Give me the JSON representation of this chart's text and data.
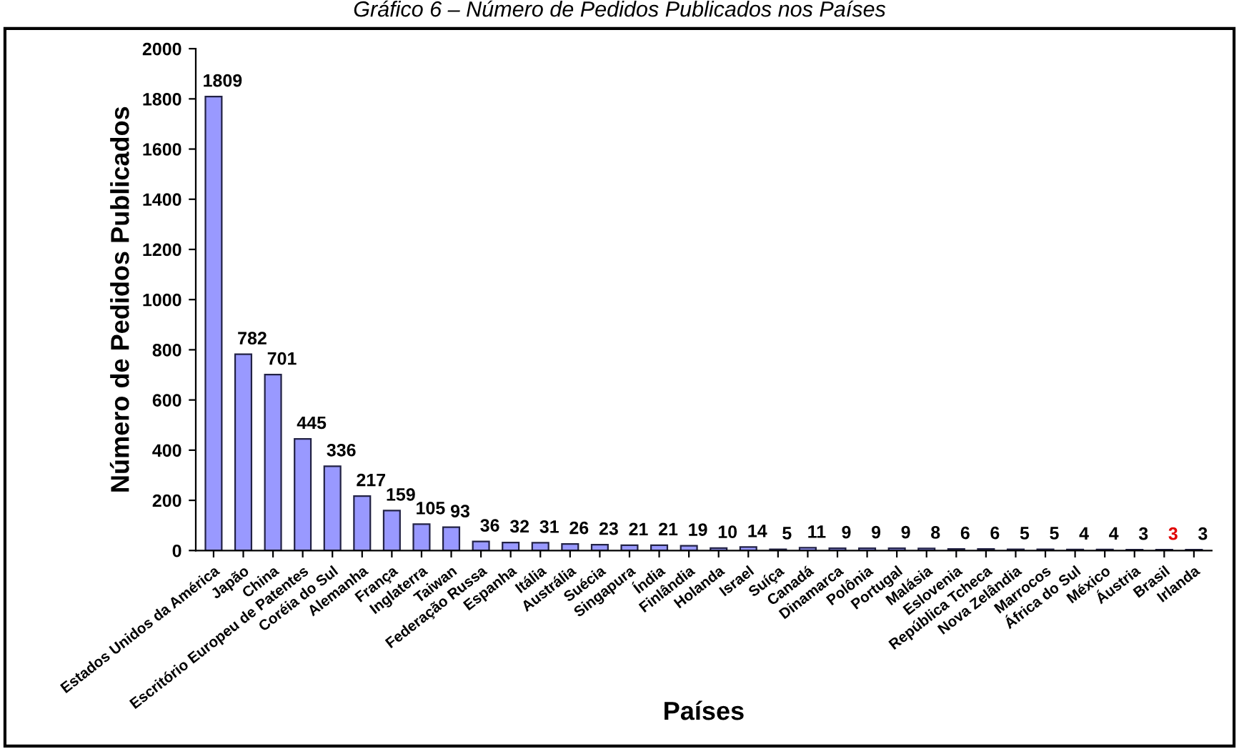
{
  "chart_data": {
    "type": "bar",
    "title": "Gráfico 6 – Número de Pedidos Publicados nos Países",
    "xlabel": "Países",
    "ylabel": "Número de Pedidos Publicados",
    "categories": [
      "Estados Unidos da América",
      "Japão",
      "China",
      "Escritório Europeu de Patentes",
      "Coréia do Sul",
      "Alemanha",
      "França",
      "Inglaterra",
      "Taiwan",
      "Federação Russa",
      "Espanha",
      "Itália",
      "Austrália",
      "Suécia",
      "Singapura",
      "Índia",
      "Finlândia",
      "Holanda",
      "Israel",
      "Suíça",
      "Canadá",
      "Dinamarca",
      "Polônia",
      "Portugal",
      "Malásia",
      "Eslovenia",
      "República Tcheca",
      "Nova Zelândia",
      "Marrocos",
      "África do Sul",
      "México",
      "Áustria",
      "Brasil",
      "Irlanda"
    ],
    "values": [
      1809,
      782,
      701,
      445,
      336,
      217,
      159,
      105,
      93,
      36,
      32,
      31,
      26,
      23,
      21,
      21,
      19,
      10,
      14,
      5,
      11,
      9,
      9,
      9,
      8,
      6,
      6,
      5,
      5,
      4,
      4,
      3,
      3,
      3
    ],
    "colors": [
      "#9999ff",
      "#9999ff",
      "#9999ff",
      "#9999ff",
      "#9999ff",
      "#9999ff",
      "#9999ff",
      "#9999ff",
      "#9999ff",
      "#9999ff",
      "#9999ff",
      "#9999ff",
      "#9999ff",
      "#9999ff",
      "#9999ff",
      "#9999ff",
      "#9999ff",
      "#9999ff",
      "#9999ff",
      "#9999ff",
      "#9999ff",
      "#9999ff",
      "#9999ff",
      "#9999ff",
      "#9999ff",
      "#9999ff",
      "#9999ff",
      "#9999ff",
      "#9999ff",
      "#9999ff",
      "#9999ff",
      "#9999ff",
      "#e00000",
      "#9999ff"
    ],
    "ylim": [
      0,
      2000
    ],
    "yticks": [
      0,
      200,
      400,
      600,
      800,
      1000,
      1200,
      1400,
      1600,
      1800,
      2000
    ],
    "data_labels": true,
    "grid": false,
    "legend": false
  }
}
